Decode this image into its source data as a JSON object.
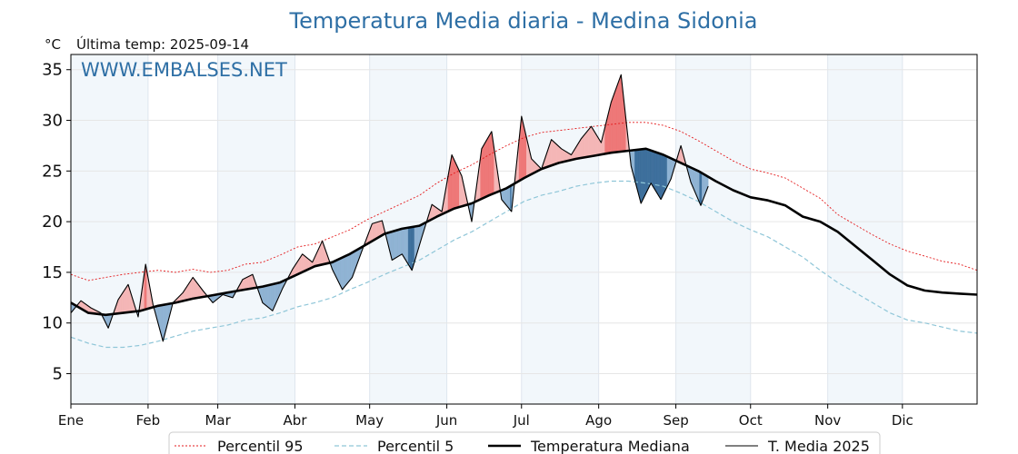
{
  "chart_data": {
    "type": "line",
    "title": "Temperatura Media diaria - Medina Sidonia",
    "unit_label": "°C",
    "last_temp_label": "Última temp: 2025-09-14",
    "watermark": "WWW.EMBALSES.NET",
    "ylim": [
      2,
      36.5
    ],
    "y_ticks": [
      5,
      10,
      15,
      20,
      25,
      30,
      35
    ],
    "x_axis": "day of year (1-365)",
    "xlim": [
      1,
      365
    ],
    "months": [
      {
        "label": "Ene",
        "day": 1
      },
      {
        "label": "Feb",
        "day": 32
      },
      {
        "label": "Mar",
        "day": 60
      },
      {
        "label": "Abr",
        "day": 91
      },
      {
        "label": "May",
        "day": 121
      },
      {
        "label": "Jun",
        "day": 152
      },
      {
        "label": "Jul",
        "day": 182
      },
      {
        "label": "Ago",
        "day": 213
      },
      {
        "label": "Sep",
        "day": 244
      },
      {
        "label": "Oct",
        "day": 274
      },
      {
        "label": "Nov",
        "day": 305
      },
      {
        "label": "Dic",
        "day": 335
      }
    ],
    "grid": true,
    "legend_position": "bottom",
    "series": [
      {
        "name": "Percentil 95",
        "color": "#e41a1c",
        "style": "dotted",
        "x": [
          1,
          8,
          15,
          22,
          29,
          36,
          43,
          50,
          57,
          64,
          71,
          78,
          85,
          92,
          99,
          106,
          113,
          120,
          127,
          134,
          141,
          148,
          155,
          162,
          169,
          176,
          183,
          190,
          197,
          204,
          211,
          218,
          225,
          232,
          239,
          246,
          253,
          260,
          267,
          274,
          281,
          288,
          295,
          302,
          309,
          316,
          323,
          330,
          337,
          344,
          351,
          358,
          365
        ],
        "values": [
          14.8,
          14.2,
          14.5,
          14.8,
          15.0,
          15.2,
          15.0,
          15.3,
          15.0,
          15.2,
          15.8,
          16.0,
          16.7,
          17.5,
          17.8,
          18.5,
          19.2,
          20.2,
          21.0,
          21.8,
          22.6,
          23.8,
          24.8,
          25.6,
          26.6,
          27.5,
          28.3,
          28.8,
          29.0,
          29.2,
          29.4,
          29.6,
          29.8,
          29.8,
          29.5,
          28.9,
          28.0,
          27.0,
          26.0,
          25.2,
          24.8,
          24.3,
          23.3,
          22.3,
          20.7,
          19.7,
          18.7,
          17.8,
          17.1,
          16.6,
          16.1,
          15.8,
          15.2
        ]
      },
      {
        "name": "Percentil 5",
        "color": "#8fc6d8",
        "style": "dashed",
        "x": [
          1,
          8,
          15,
          22,
          29,
          36,
          43,
          50,
          57,
          64,
          71,
          78,
          85,
          92,
          99,
          106,
          113,
          120,
          127,
          134,
          141,
          148,
          155,
          162,
          169,
          176,
          183,
          190,
          197,
          204,
          211,
          218,
          225,
          232,
          239,
          246,
          253,
          260,
          267,
          274,
          281,
          288,
          295,
          302,
          309,
          316,
          323,
          330,
          337,
          344,
          351,
          358,
          365
        ],
        "values": [
          8.6,
          8.0,
          7.6,
          7.6,
          7.8,
          8.2,
          8.7,
          9.2,
          9.5,
          9.8,
          10.3,
          10.5,
          11.0,
          11.6,
          12.0,
          12.5,
          13.3,
          14.0,
          14.8,
          15.5,
          16.2,
          17.2,
          18.2,
          19.0,
          20.0,
          21.0,
          22.0,
          22.6,
          23.0,
          23.5,
          23.8,
          24.0,
          24.0,
          23.8,
          23.5,
          22.8,
          22.0,
          21.0,
          20.0,
          19.2,
          18.5,
          17.5,
          16.5,
          15.2,
          14.0,
          13.0,
          12.0,
          11.0,
          10.3,
          10.0,
          9.6,
          9.2,
          9.0
        ]
      },
      {
        "name": "Temperatura Mediana",
        "color": "#000000",
        "style": "solid-thick",
        "x": [
          1,
          8,
          15,
          22,
          29,
          36,
          43,
          50,
          57,
          64,
          71,
          78,
          85,
          92,
          99,
          106,
          113,
          120,
          127,
          134,
          141,
          148,
          155,
          162,
          169,
          176,
          183,
          190,
          197,
          204,
          211,
          218,
          225,
          232,
          239,
          246,
          253,
          260,
          267,
          274,
          281,
          288,
          295,
          302,
          309,
          316,
          323,
          330,
          337,
          344,
          351,
          358,
          365
        ],
        "values": [
          12.0,
          11.0,
          10.8,
          11.0,
          11.2,
          11.7,
          12.0,
          12.4,
          12.7,
          13.0,
          13.3,
          13.6,
          14.0,
          14.8,
          15.6,
          16.0,
          16.8,
          17.8,
          18.8,
          19.3,
          19.6,
          20.5,
          21.3,
          21.8,
          22.6,
          23.3,
          24.3,
          25.2,
          25.8,
          26.2,
          26.5,
          26.8,
          27.0,
          27.2,
          26.6,
          25.8,
          25.0,
          24.0,
          23.1,
          22.4,
          22.1,
          21.6,
          20.5,
          20.0,
          19.0,
          17.6,
          16.2,
          14.8,
          13.7,
          13.2,
          13.0,
          12.9,
          12.8
        ]
      },
      {
        "name": "T. Media 2025",
        "color": "#000000",
        "style": "solid-thin",
        "x": [
          1,
          5,
          9,
          13,
          16,
          20,
          24,
          28,
          31,
          34,
          38,
          42,
          46,
          50,
          54,
          58,
          62,
          66,
          70,
          74,
          78,
          82,
          86,
          90,
          94,
          98,
          102,
          106,
          110,
          114,
          118,
          122,
          126,
          130,
          134,
          138,
          142,
          146,
          150,
          154,
          158,
          162,
          166,
          170,
          174,
          178,
          182,
          186,
          190,
          194,
          198,
          202,
          206,
          210,
          214,
          218,
          222,
          226,
          230,
          234,
          238,
          242,
          246,
          250,
          254,
          257
        ],
        "values": [
          11.0,
          12.2,
          11.5,
          11.0,
          9.5,
          12.3,
          13.8,
          10.6,
          15.8,
          11.8,
          8.2,
          12.0,
          13.0,
          14.5,
          13.2,
          12.0,
          12.8,
          12.5,
          14.3,
          14.8,
          12.0,
          11.2,
          13.4,
          15.3,
          16.8,
          16.0,
          18.1,
          15.3,
          13.3,
          14.5,
          17.2,
          19.8,
          20.1,
          16.2,
          16.8,
          15.2,
          18.5,
          21.7,
          21.0,
          26.6,
          24.5,
          20.0,
          27.2,
          28.9,
          22.2,
          21.0,
          30.4,
          26.2,
          25.2,
          28.1,
          27.2,
          26.6,
          28.2,
          29.4,
          27.8,
          31.8,
          34.5,
          25.5,
          21.8,
          23.8,
          22.2,
          24.2,
          27.5,
          23.9,
          21.6,
          23.5
        ]
      }
    ]
  }
}
